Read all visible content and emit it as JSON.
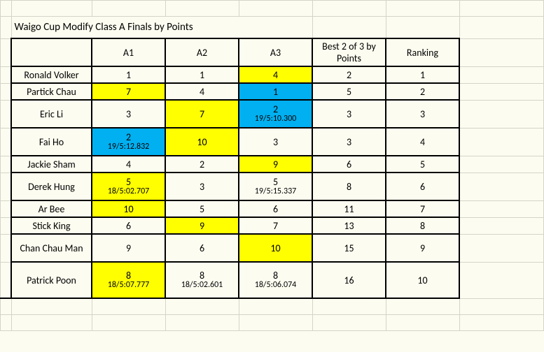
{
  "title": "Waigo Cup Modify Class A Finals by Points",
  "headers": {
    "a1": "A1",
    "a2": "A2",
    "a3": "A3",
    "best": "Best 2 of 3 by Points",
    "rank": "Ranking"
  },
  "rows": [
    {
      "name": "Ronald Volker",
      "a1": {
        "v": "1",
        "hl": null
      },
      "a2": {
        "v": "1",
        "hl": null
      },
      "a3": {
        "v": "4",
        "hl": "yellow"
      },
      "best": "2",
      "rank": "1"
    },
    {
      "name": "Partick Chau",
      "a1": {
        "v": "7",
        "hl": "yellow"
      },
      "a2": {
        "v": "4",
        "hl": null
      },
      "a3": {
        "v": "1",
        "hl": "blue"
      },
      "best": "5",
      "rank": "2"
    },
    {
      "name": "Eric Li",
      "a1": {
        "v": "3",
        "hl": null
      },
      "a2": {
        "v": "7",
        "hl": "yellow"
      },
      "a3": {
        "v": "2",
        "sub": "19/5:10.300",
        "hl": "blue"
      },
      "best": "3",
      "rank": "3",
      "tall": true
    },
    {
      "name": "Fai Ho",
      "a1": {
        "v": "2",
        "sub": "19/5:12.832",
        "hl": "blue"
      },
      "a2": {
        "v": "10",
        "hl": "yellow"
      },
      "a3": {
        "v": "3",
        "hl": null
      },
      "best": "3",
      "rank": "4",
      "tall": true
    },
    {
      "name": "Jackie Sham",
      "a1": {
        "v": "4",
        "hl": null
      },
      "a2": {
        "v": "2",
        "hl": null
      },
      "a3": {
        "v": "9",
        "hl": "yellow"
      },
      "best": "6",
      "rank": "5"
    },
    {
      "name": "Derek Hung",
      "a1": {
        "v": "5",
        "sub": "18/5:02.707",
        "hl": "yellow"
      },
      "a2": {
        "v": "3",
        "hl": null
      },
      "a3": {
        "v": "5",
        "sub": "19/5:15.337",
        "hl": null
      },
      "best": "8",
      "rank": "6",
      "tall": true
    },
    {
      "name": "Ar Bee",
      "a1": {
        "v": "10",
        "hl": "yellow"
      },
      "a2": {
        "v": "5",
        "hl": null
      },
      "a3": {
        "v": "6",
        "hl": null
      },
      "best": "11",
      "rank": "7"
    },
    {
      "name": "Stick King",
      "a1": {
        "v": "6",
        "hl": null
      },
      "a2": {
        "v": "9",
        "hl": "yellow"
      },
      "a3": {
        "v": "7",
        "hl": null
      },
      "best": "13",
      "rank": "8"
    },
    {
      "name": "Chan Chau Man",
      "a1": {
        "v": "9",
        "hl": null
      },
      "a2": {
        "v": "6",
        "hl": null
      },
      "a3": {
        "v": "10",
        "hl": "yellow"
      },
      "best": "15",
      "rank": "9",
      "tall": true
    },
    {
      "name": "Patrick Poon",
      "a1": {
        "v": "8",
        "sub": "18/5:07.777",
        "hl": "yellow"
      },
      "a2": {
        "v": "8",
        "sub": "18/5:02.601",
        "hl": null
      },
      "a3": {
        "v": "8",
        "sub": "18/5:06.074",
        "hl": null
      },
      "best": "16",
      "rank": "10",
      "xtall": true
    }
  ]
}
